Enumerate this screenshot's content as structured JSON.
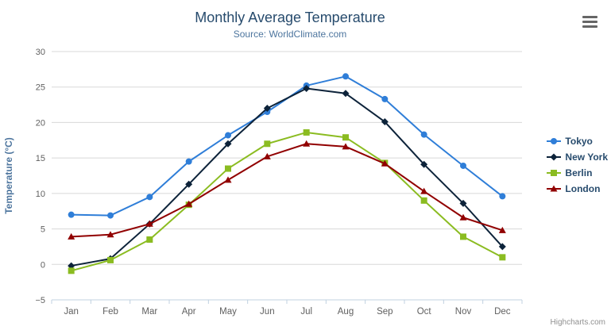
{
  "header": {
    "title": "Monthly Average Temperature",
    "subtitle": "Source: WorldClimate.com"
  },
  "credit": {
    "label": "Highcharts.com"
  },
  "chart_data": {
    "type": "line",
    "title": "Monthly Average Temperature",
    "subtitle": "Source: WorldClimate.com",
    "xlabel": "",
    "ylabel": "Temperature (°C)",
    "categories": [
      "Jan",
      "Feb",
      "Mar",
      "Apr",
      "May",
      "Jun",
      "Jul",
      "Aug",
      "Sep",
      "Oct",
      "Nov",
      "Dec"
    ],
    "series": [
      {
        "name": "Tokyo",
        "color": "#2f7ed8",
        "marker": "circle",
        "values": [
          7.0,
          6.9,
          9.5,
          14.5,
          18.2,
          21.5,
          25.2,
          26.5,
          23.3,
          18.3,
          13.9,
          9.6
        ]
      },
      {
        "name": "New York",
        "color": "#0d233a",
        "marker": "diamond",
        "values": [
          -0.2,
          0.8,
          5.7,
          11.3,
          17.0,
          22.0,
          24.8,
          24.1,
          20.1,
          14.1,
          8.6,
          2.5
        ]
      },
      {
        "name": "Berlin",
        "color": "#8bbc21",
        "marker": "square",
        "values": [
          -0.9,
          0.6,
          3.5,
          8.4,
          13.5,
          17.0,
          18.6,
          17.9,
          14.3,
          9.0,
          3.9,
          1.0
        ]
      },
      {
        "name": "London",
        "color": "#910000",
        "marker": "triangle",
        "values": [
          3.9,
          4.2,
          5.7,
          8.5,
          11.9,
          15.2,
          17.0,
          16.6,
          14.2,
          10.3,
          6.6,
          4.8
        ]
      }
    ],
    "ylim": [
      -5,
      30
    ],
    "y_ticks": [
      -5,
      0,
      5,
      10,
      15,
      20,
      25,
      30
    ],
    "grid": "horizontal",
    "legend_position": "right",
    "colors": {
      "grid_line": "#d8d8d8",
      "axis_line": "#c0d0e0",
      "tick_label": "#606060",
      "axis_title": "#4d759e",
      "title": "#274b6d",
      "subtitle": "#4d759e",
      "legend_text": "#274b6d",
      "credit_text": "#909090",
      "menu_icon": "#666666"
    }
  }
}
